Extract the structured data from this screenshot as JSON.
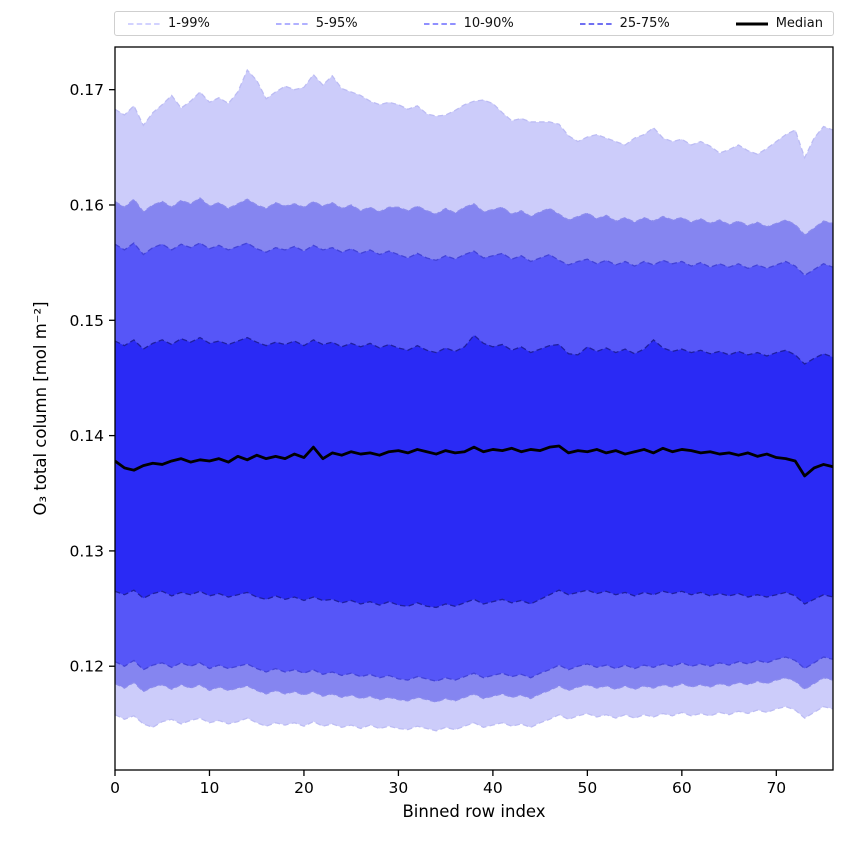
{
  "chart_data": {
    "type": "area",
    "title": "",
    "xlabel": "Binned row index",
    "ylabel": "O₃ total column [mol m⁻²]",
    "xlim": [
      0,
      76
    ],
    "ylim": [
      0.111,
      0.1737
    ],
    "grid": false,
    "legend_position": "top",
    "axis_color": "#000000",
    "background_color": "#ffffff",
    "xticks": [
      0,
      10,
      20,
      30,
      40,
      50,
      60,
      70
    ],
    "xticklabels": [
      "0",
      "10",
      "20",
      "30",
      "40",
      "50",
      "60",
      "70"
    ],
    "yticks": [
      0.12,
      0.13,
      0.14,
      0.15,
      0.16,
      0.17
    ],
    "yticklabels": [
      "0.12",
      "0.13",
      "0.14",
      "0.15",
      "0.16",
      "0.17"
    ],
    "legend_entries": [
      {
        "label": "1-99%",
        "style": "dashed",
        "color": "#ccccff"
      },
      {
        "label": "5-95%",
        "style": "dashed",
        "color": "#a6a6ff"
      },
      {
        "label": "10-90%",
        "style": "dashed",
        "color": "#8080ff"
      },
      {
        "label": "25-75%",
        "style": "dashed",
        "color": "#5c5cf0"
      },
      {
        "label": "Median",
        "style": "solid",
        "color": "#000000"
      }
    ],
    "x": [
      0,
      1,
      2,
      3,
      4,
      5,
      6,
      7,
      8,
      9,
      10,
      11,
      12,
      13,
      14,
      15,
      16,
      17,
      18,
      19,
      20,
      21,
      22,
      23,
      24,
      25,
      26,
      27,
      28,
      29,
      30,
      31,
      32,
      33,
      34,
      35,
      36,
      37,
      38,
      39,
      40,
      41,
      42,
      43,
      44,
      45,
      46,
      47,
      48,
      49,
      50,
      51,
      52,
      53,
      54,
      55,
      56,
      57,
      58,
      59,
      60,
      61,
      62,
      63,
      64,
      65,
      66,
      67,
      68,
      69,
      70,
      71,
      72,
      73,
      74,
      75,
      76
    ],
    "bands": [
      {
        "name": "1-99%",
        "fill": "#ccccfa",
        "edge": "#bcbcf4",
        "low": [
          0.1158,
          0.1154,
          0.1157,
          0.115,
          0.1147,
          0.1152,
          0.1154,
          0.115,
          0.1153,
          0.1155,
          0.1151,
          0.1153,
          0.115,
          0.1152,
          0.1155,
          0.1151,
          0.1148,
          0.1151,
          0.1149,
          0.1151,
          0.1148,
          0.1152,
          0.1148,
          0.115,
          0.1147,
          0.1149,
          0.1146,
          0.1149,
          0.1146,
          0.1148,
          0.1146,
          0.1145,
          0.1148,
          0.1146,
          0.1144,
          0.1147,
          0.1145,
          0.1148,
          0.1151,
          0.1147,
          0.1149,
          0.1151,
          0.1148,
          0.115,
          0.1147,
          0.1151,
          0.1154,
          0.1158,
          0.1154,
          0.1157,
          0.1159,
          0.1156,
          0.1158,
          0.1155,
          0.1158,
          0.1155,
          0.1158,
          0.1156,
          0.1159,
          0.1157,
          0.116,
          0.1157,
          0.1159,
          0.1157,
          0.116,
          0.1158,
          0.1161,
          0.1159,
          0.1162,
          0.116,
          0.1163,
          0.1165,
          0.1162,
          0.1155,
          0.116,
          0.1165,
          0.1163
        ],
        "high": [
          0.1683,
          0.1678,
          0.1686,
          0.1669,
          0.168,
          0.1687,
          0.1695,
          0.1684,
          0.169,
          0.1698,
          0.1689,
          0.1693,
          0.1688,
          0.1698,
          0.1717,
          0.1708,
          0.1692,
          0.1698,
          0.1703,
          0.17,
          0.1702,
          0.1713,
          0.1704,
          0.1712,
          0.1701,
          0.1698,
          0.1695,
          0.169,
          0.1687,
          0.1689,
          0.1687,
          0.1683,
          0.1686,
          0.1679,
          0.1677,
          0.1678,
          0.1682,
          0.1687,
          0.169,
          0.1691,
          0.1688,
          0.168,
          0.1673,
          0.1675,
          0.1672,
          0.1672,
          0.1672,
          0.167,
          0.166,
          0.1655,
          0.1659,
          0.1661,
          0.1658,
          0.1655,
          0.1652,
          0.1658,
          0.1661,
          0.1667,
          0.1658,
          0.1655,
          0.1657,
          0.1652,
          0.1655,
          0.1651,
          0.1645,
          0.1648,
          0.1652,
          0.1647,
          0.1644,
          0.1649,
          0.1655,
          0.1661,
          0.1665,
          0.1641,
          0.1658,
          0.1668,
          0.1665
        ]
      },
      {
        "name": "5-95%",
        "fill": "#8585f0",
        "edge": "#8c8cec",
        "low": [
          0.1185,
          0.1181,
          0.1186,
          0.1178,
          0.1182,
          0.1184,
          0.118,
          0.1184,
          0.1181,
          0.1184,
          0.1179,
          0.1182,
          0.1179,
          0.1181,
          0.1183,
          0.1179,
          0.1176,
          0.1179,
          0.1176,
          0.1178,
          0.1175,
          0.1178,
          0.1174,
          0.1176,
          0.1173,
          0.1175,
          0.1172,
          0.1174,
          0.1171,
          0.1173,
          0.1171,
          0.117,
          0.1173,
          0.1171,
          0.1169,
          0.1172,
          0.117,
          0.1173,
          0.1176,
          0.1172,
          0.1174,
          0.1176,
          0.1173,
          0.1175,
          0.1172,
          0.1176,
          0.1179,
          0.1183,
          0.1179,
          0.1182,
          0.1184,
          0.1181,
          0.1183,
          0.118,
          0.1183,
          0.118,
          0.1183,
          0.1181,
          0.1184,
          0.1182,
          0.1185,
          0.1182,
          0.1184,
          0.1182,
          0.1185,
          0.1183,
          0.1186,
          0.1184,
          0.1187,
          0.1185,
          0.1188,
          0.119,
          0.1187,
          0.118,
          0.1185,
          0.119,
          0.1188
        ],
        "high": [
          0.1603,
          0.1598,
          0.1605,
          0.1594,
          0.16,
          0.1603,
          0.1598,
          0.1604,
          0.1601,
          0.1606,
          0.1599,
          0.1602,
          0.1597,
          0.1601,
          0.1605,
          0.16,
          0.1597,
          0.1602,
          0.1599,
          0.1601,
          0.1598,
          0.1603,
          0.1599,
          0.1602,
          0.1597,
          0.16,
          0.1595,
          0.1598,
          0.1594,
          0.1598,
          0.1598,
          0.1595,
          0.1599,
          0.1595,
          0.1592,
          0.1597,
          0.1593,
          0.1598,
          0.1601,
          0.1594,
          0.1596,
          0.1598,
          0.1592,
          0.1595,
          0.159,
          0.1594,
          0.1597,
          0.1592,
          0.1587,
          0.159,
          0.1593,
          0.1588,
          0.1591,
          0.1586,
          0.1589,
          0.1585,
          0.1589,
          0.1586,
          0.159,
          0.1587,
          0.1589,
          0.1585,
          0.1588,
          0.1584,
          0.1587,
          0.1583,
          0.1586,
          0.1582,
          0.1585,
          0.1581,
          0.1584,
          0.1587,
          0.1583,
          0.1574,
          0.158,
          0.1586,
          0.1584
        ]
      },
      {
        "name": "10-90%",
        "fill": "#5656f8",
        "edge": "#4343d8",
        "low": [
          0.1204,
          0.12,
          0.1205,
          0.1197,
          0.1201,
          0.1203,
          0.1199,
          0.1203,
          0.12,
          0.1203,
          0.1198,
          0.1201,
          0.1198,
          0.12,
          0.1202,
          0.1198,
          0.1195,
          0.1198,
          0.1195,
          0.1197,
          0.1194,
          0.1197,
          0.1193,
          0.1195,
          0.1192,
          0.1194,
          0.1191,
          0.1193,
          0.119,
          0.1192,
          0.1189,
          0.1188,
          0.1191,
          0.1189,
          0.1187,
          0.119,
          0.1188,
          0.1191,
          0.1194,
          0.119,
          0.1192,
          0.1194,
          0.1191,
          0.1193,
          0.119,
          0.1194,
          0.1197,
          0.1201,
          0.1197,
          0.12,
          0.1202,
          0.1199,
          0.1201,
          0.1198,
          0.1201,
          0.1198,
          0.1201,
          0.1199,
          0.1202,
          0.12,
          0.1203,
          0.12,
          0.1202,
          0.12,
          0.1203,
          0.1201,
          0.1204,
          0.1202,
          0.1205,
          0.1203,
          0.1206,
          0.1208,
          0.1205,
          0.1198,
          0.1203,
          0.1208,
          0.1206
        ],
        "high": [
          0.1566,
          0.1561,
          0.1567,
          0.1557,
          0.1563,
          0.1566,
          0.1561,
          0.1566,
          0.1563,
          0.1567,
          0.1562,
          0.1565,
          0.1561,
          0.1564,
          0.1567,
          0.1562,
          0.1559,
          0.1563,
          0.1561,
          0.1564,
          0.156,
          0.1565,
          0.1561,
          0.1563,
          0.1559,
          0.1562,
          0.1558,
          0.1561,
          0.1557,
          0.156,
          0.1557,
          0.1554,
          0.1558,
          0.1554,
          0.1552,
          0.1556,
          0.1553,
          0.1557,
          0.156,
          0.1554,
          0.1556,
          0.1558,
          0.1553,
          0.1556,
          0.1551,
          0.1554,
          0.1557,
          0.1552,
          0.1548,
          0.1551,
          0.1553,
          0.1549,
          0.1552,
          0.1548,
          0.1551,
          0.1547,
          0.1551,
          0.1548,
          0.1552,
          0.1549,
          0.1551,
          0.1547,
          0.155,
          0.1546,
          0.1549,
          0.1546,
          0.1549,
          0.1545,
          0.1548,
          0.1545,
          0.1548,
          0.1551,
          0.1547,
          0.1539,
          0.1544,
          0.1549,
          0.1546
        ]
      },
      {
        "name": "25-75%",
        "fill": "#2a2af5",
        "edge": "#1f1f9e",
        "low": [
          0.1265,
          0.1262,
          0.1266,
          0.1259,
          0.1263,
          0.1265,
          0.1261,
          0.1264,
          0.1262,
          0.1265,
          0.1261,
          0.1263,
          0.126,
          0.1262,
          0.1264,
          0.126,
          0.1258,
          0.1261,
          0.1258,
          0.126,
          0.1257,
          0.126,
          0.1257,
          0.1258,
          0.1255,
          0.1257,
          0.1254,
          0.1256,
          0.1253,
          0.1256,
          0.1253,
          0.1252,
          0.1255,
          0.1252,
          0.1251,
          0.1254,
          0.1252,
          0.1255,
          0.1258,
          0.1254,
          0.1256,
          0.1258,
          0.1255,
          0.1257,
          0.1254,
          0.1258,
          0.1262,
          0.1266,
          0.1262,
          0.1264,
          0.1266,
          0.1263,
          0.1265,
          0.1262,
          0.1264,
          0.1261,
          0.1264,
          0.1262,
          0.1265,
          0.1263,
          0.1265,
          0.1262,
          0.1264,
          0.1261,
          0.1263,
          0.1261,
          0.1263,
          0.126,
          0.1262,
          0.126,
          0.1262,
          0.1264,
          0.1261,
          0.1254,
          0.1258,
          0.1262,
          0.126
        ],
        "high": [
          0.1482,
          0.1478,
          0.1483,
          0.1475,
          0.148,
          0.1483,
          0.1479,
          0.1484,
          0.1481,
          0.1485,
          0.148,
          0.1482,
          0.1479,
          0.1482,
          0.1485,
          0.1481,
          0.1478,
          0.1481,
          0.1479,
          0.1482,
          0.1478,
          0.1483,
          0.1479,
          0.1481,
          0.1477,
          0.148,
          0.1477,
          0.148,
          0.1476,
          0.1479,
          0.1476,
          0.1474,
          0.1478,
          0.1474,
          0.1472,
          0.1476,
          0.1473,
          0.1477,
          0.1487,
          0.148,
          0.1477,
          0.1479,
          0.1474,
          0.1477,
          0.1472,
          0.1475,
          0.1478,
          0.1479,
          0.1471,
          0.147,
          0.1477,
          0.1473,
          0.1476,
          0.1472,
          0.1475,
          0.1471,
          0.1475,
          0.1483,
          0.1476,
          0.1473,
          0.1475,
          0.1472,
          0.1474,
          0.1471,
          0.1473,
          0.147,
          0.1473,
          0.147,
          0.1472,
          0.1469,
          0.1472,
          0.1474,
          0.147,
          0.1462,
          0.1467,
          0.1471,
          0.1468
        ]
      }
    ],
    "median": {
      "name": "Median",
      "color": "#000000",
      "values": [
        0.1378,
        0.1372,
        0.137,
        0.1374,
        0.1376,
        0.1375,
        0.1378,
        0.138,
        0.1377,
        0.1379,
        0.1378,
        0.138,
        0.1377,
        0.1382,
        0.1379,
        0.1383,
        0.138,
        0.1382,
        0.138,
        0.1384,
        0.1381,
        0.139,
        0.138,
        0.1385,
        0.1383,
        0.1386,
        0.1384,
        0.1385,
        0.1383,
        0.1386,
        0.1387,
        0.1385,
        0.1388,
        0.1386,
        0.1384,
        0.1387,
        0.1385,
        0.1386,
        0.139,
        0.1386,
        0.1388,
        0.1387,
        0.1389,
        0.1386,
        0.1388,
        0.1387,
        0.139,
        0.1391,
        0.1385,
        0.1387,
        0.1386,
        0.1388,
        0.1385,
        0.1387,
        0.1384,
        0.1386,
        0.1388,
        0.1385,
        0.1389,
        0.1386,
        0.1388,
        0.1387,
        0.1385,
        0.1386,
        0.1384,
        0.1385,
        0.1383,
        0.1385,
        0.1382,
        0.1384,
        0.1381,
        0.138,
        0.1378,
        0.1365,
        0.1372,
        0.1375,
        0.1373
      ]
    }
  }
}
